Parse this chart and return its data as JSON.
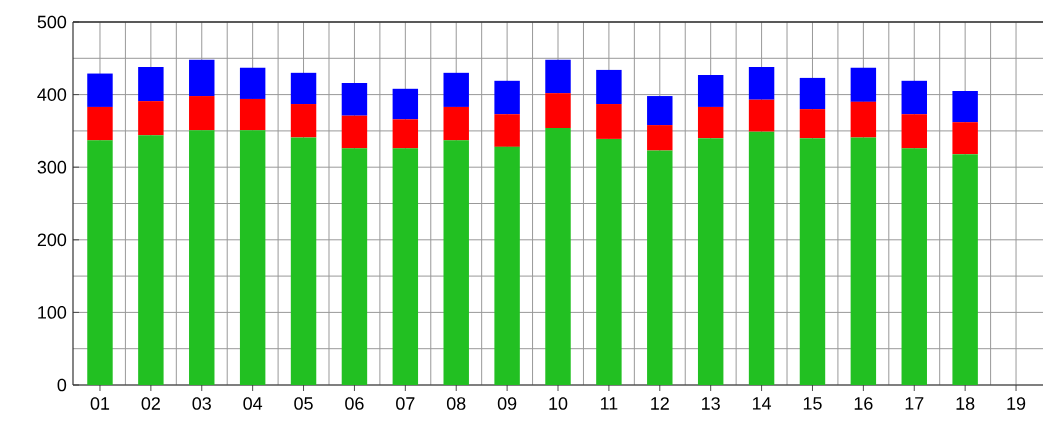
{
  "chart_data": {
    "type": "bar",
    "stacked": true,
    "categories": [
      "01",
      "02",
      "03",
      "04",
      "05",
      "06",
      "07",
      "08",
      "09",
      "10",
      "11",
      "12",
      "13",
      "14",
      "15",
      "16",
      "17",
      "18",
      "19"
    ],
    "series": [
      {
        "color": "#22c022",
        "values": [
          337,
          344,
          351,
          351,
          341,
          326,
          326,
          337,
          328,
          354,
          339,
          323,
          340,
          349,
          340,
          341,
          326,
          318,
          null
        ]
      },
      {
        "color": "#ff0000",
        "values": [
          46,
          47,
          47,
          43,
          46,
          45,
          40,
          46,
          45,
          48,
          48,
          35,
          43,
          44,
          40,
          49,
          47,
          44,
          null
        ]
      },
      {
        "color": "#0000ff",
        "values": [
          46,
          47,
          50,
          43,
          43,
          45,
          42,
          47,
          46,
          46,
          47,
          40,
          44,
          45,
          43,
          47,
          46,
          43,
          null
        ]
      }
    ],
    "ylim": [
      0,
      500
    ],
    "yticks": [
      0,
      100,
      200,
      300,
      400,
      500
    ],
    "grid": true
  }
}
